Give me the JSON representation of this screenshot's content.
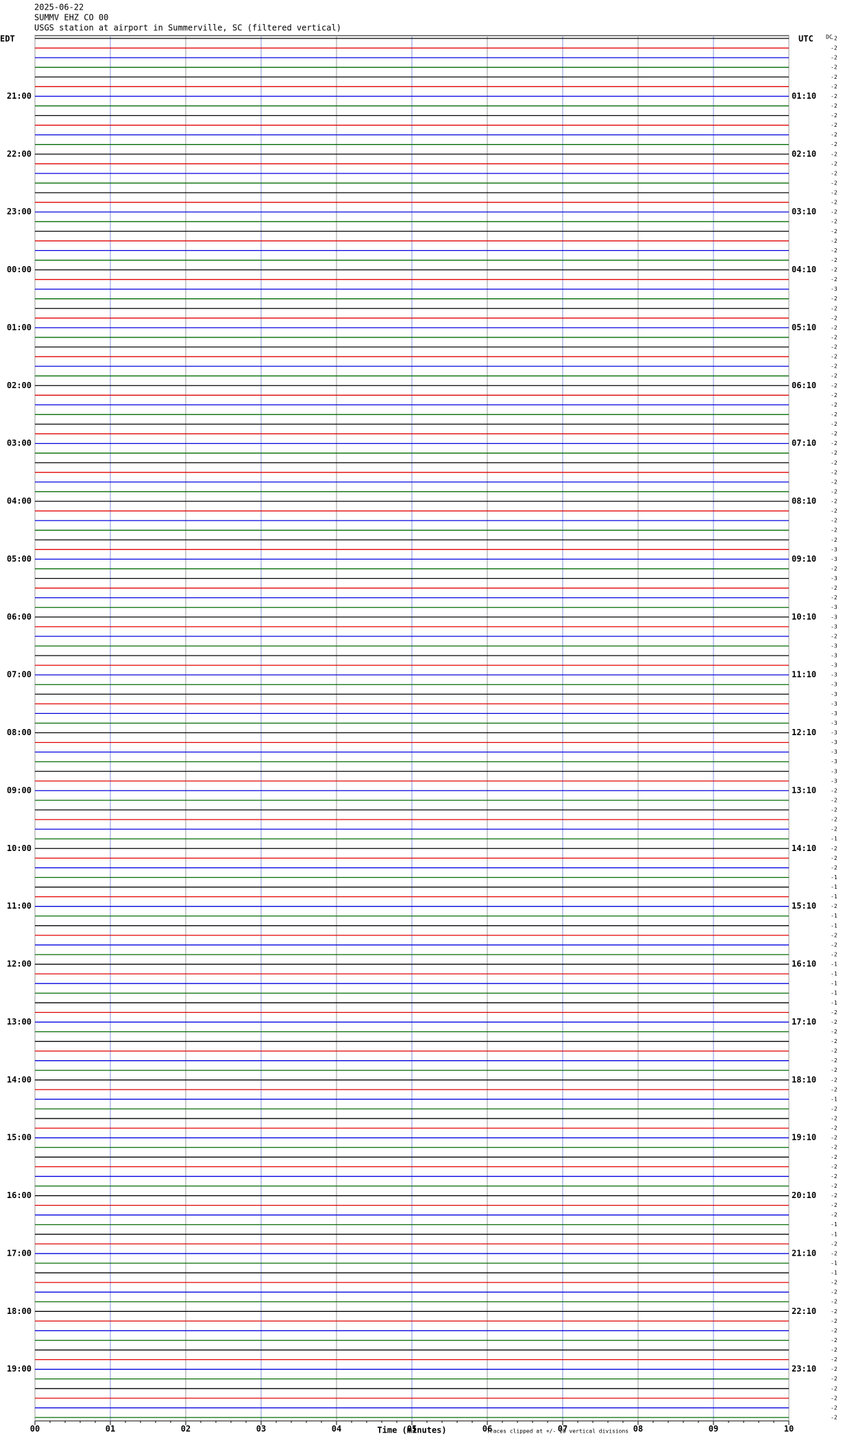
{
  "chart_data": {
    "type": "helicorder",
    "date": "2025-06-22",
    "station": "SUMMV EHZ CO 00",
    "title": "USGS station at airport in Summerville, SC (filtered vertical)",
    "left_zone": "EDT",
    "right_zone": "UTC",
    "offset_header": "DC",
    "xlabel": "Time (minutes)",
    "note": "Traces clipped at +/- 10 vertical divisions",
    "xlim": [
      0,
      10
    ],
    "xticks": [
      {
        "value": 0,
        "label": "00"
      },
      {
        "value": 1,
        "label": "01"
      },
      {
        "value": 2,
        "label": "02"
      },
      {
        "value": 3,
        "label": "03"
      },
      {
        "value": 4,
        "label": "04"
      },
      {
        "value": 5,
        "label": "05"
      },
      {
        "value": 6,
        "label": "06"
      },
      {
        "value": 7,
        "label": "07"
      },
      {
        "value": 8,
        "label": "08"
      },
      {
        "value": 9,
        "label": "09"
      },
      10
    ],
    "left_labels": [
      "21:00",
      "22:00",
      "23:00",
      "00:00",
      "01:00",
      "02:00",
      "03:00",
      "04:00",
      "05:00",
      "06:00",
      "07:00",
      "08:00",
      "09:00",
      "10:00",
      "11:00",
      "12:00",
      "13:00",
      "14:00",
      "15:00",
      "16:00",
      "17:00",
      "18:00",
      "19:00"
    ],
    "right_labels": [
      "01:10",
      "02:10",
      "03:10",
      "04:10",
      "05:10",
      "06:10",
      "07:10",
      "08:10",
      "09:10",
      "10:10",
      "11:10",
      "12:10",
      "13:10",
      "14:10",
      "15:10",
      "16:10",
      "17:10",
      "18:10",
      "19:10",
      "20:10",
      "21:10",
      "22:10",
      "23:10"
    ],
    "trace_colors": [
      "#000000",
      "#e00000",
      "#0000e0",
      "#006a00"
    ],
    "dc_offsets": [
      "-2",
      "-2",
      "-2",
      "-2",
      "-2",
      "-2",
      "-2",
      "-2",
      "-2",
      "-2",
      "-2",
      "-2",
      "-2",
      "-2",
      "-2",
      "-2",
      "-2",
      "-2",
      "-2",
      "-2",
      "-2",
      "-2",
      "-2",
      "-2",
      "-2",
      "-2",
      "-3",
      "-2",
      "-2",
      "-2",
      "-2",
      "-2",
      "-2",
      "-2",
      "-2",
      "-2",
      "-2",
      "-2",
      "-2",
      "-2",
      "-2",
      "-2",
      "-2",
      "-2",
      "-2",
      "-2",
      "-2",
      "-2",
      "-2",
      "-2",
      "-2",
      "-2",
      "-2",
      "-3",
      "-3",
      "-2",
      "-3",
      "-2",
      "-2",
      "-3",
      "-3",
      "-3",
      "-2",
      "-3",
      "-3",
      "-3",
      "-3",
      "-3",
      "-3",
      "-3",
      "-3",
      "-3",
      "-3",
      "-3",
      "-3",
      "-3",
      "-3",
      "-3",
      "-2",
      "-2",
      "-2",
      "-2",
      "-2",
      "-1",
      "-2",
      "-2",
      "-2",
      "-1",
      "-1",
      "-1",
      "-2",
      "-1",
      "-1",
      "-2",
      "-2",
      "-2",
      "-1",
      "-1",
      "-1",
      "-1",
      "-1",
      "-2",
      "-2",
      "-2",
      "-2",
      "-2",
      "-2",
      "-2",
      "-2",
      "-2",
      "-1",
      "-2",
      "-2",
      "-2",
      "-2",
      "-2",
      "-2",
      "-2",
      "-2",
      "-2",
      "-2",
      "-2",
      "-2",
      "-1",
      "-1",
      "-2",
      "-2",
      "-1",
      "-1",
      "-2",
      "-2",
      "-2",
      "-2",
      "-2",
      "-2",
      "-2",
      "-2",
      "-2",
      "-2",
      "-2",
      "-2",
      "-2",
      "-2",
      "-2"
    ]
  }
}
